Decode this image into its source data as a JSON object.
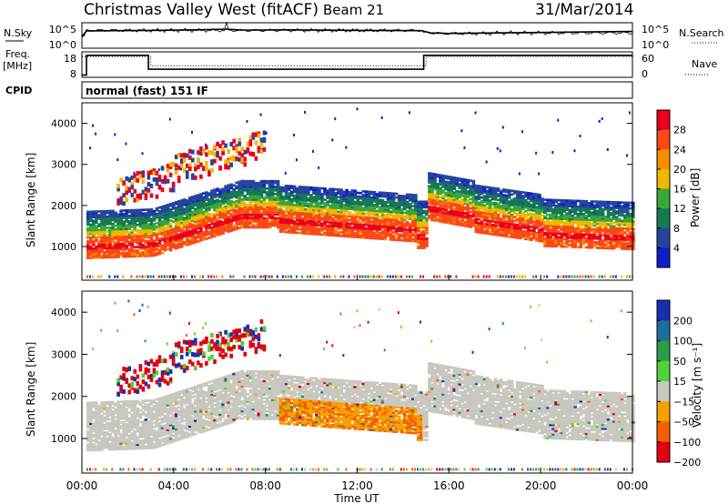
{
  "header": {
    "station": "Christmas Valley West (fitACF)",
    "beam": "Beam 21",
    "date": "31/Mar/2014"
  },
  "left_labels": {
    "nsky": "N.Sky",
    "freq_line1": "Freq.",
    "freq_line2": "[MHz]",
    "cpid": "CPID"
  },
  "right_labels": {
    "nsearch": "N.Search",
    "nave": "Nave"
  },
  "cpid_text": "normal (fast) 151 IF",
  "x_title": "Time UT",
  "chart_data": [
    {
      "id": "noise",
      "type": "line",
      "left_ticks": [
        "10^5",
        "10^0"
      ],
      "right_ticks": [
        "10^5",
        "10^0"
      ],
      "series": [
        {
          "name": "N.Sky",
          "x": [
            0,
            0.2,
            3,
            5,
            6.3,
            7,
            9,
            12,
            14.8,
            15.2,
            16,
            18,
            20,
            24
          ],
          "y": [
            0.45,
            0.68,
            0.7,
            0.72,
            0.75,
            0.71,
            0.72,
            0.7,
            0.69,
            0.6,
            0.58,
            0.6,
            0.62,
            0.66
          ]
        }
      ]
    },
    {
      "id": "freq",
      "type": "line",
      "left_ticks": [
        "18",
        "8"
      ],
      "right_ticks": [
        "60",
        "0"
      ],
      "series": [
        {
          "name": "Freq.",
          "x": [
            0,
            0.2,
            0.2,
            2.9,
            2.9,
            14.9,
            14.9,
            24
          ],
          "y": [
            8,
            8,
            16.5,
            16.5,
            10.5,
            10.5,
            16.5,
            16.5
          ]
        },
        {
          "name": "Nave",
          "x": [
            0,
            3,
            3,
            15,
            15,
            24
          ],
          "y": [
            16,
            16,
            12,
            12,
            16,
            16
          ]
        }
      ]
    },
    {
      "id": "power",
      "type": "heatmap",
      "ylabel": "Slant Range [km]",
      "xlim": [
        0,
        24
      ],
      "ylim": [
        180,
        4500
      ],
      "yticks": [
        "4000",
        "3000",
        "2000",
        "1000"
      ],
      "xticks": [
        "00:00",
        "04:00",
        "08:00",
        "12:00",
        "16:00",
        "20:00",
        "00:00"
      ],
      "colorbar": {
        "label": "Power [dB]",
        "ticks": [
          "28",
          "24",
          "20",
          "16",
          "12",
          "8",
          "4"
        ],
        "colors": [
          "#e8001e",
          "#fb4818",
          "#f88d00",
          "#f1b800",
          "#3aa73a",
          "#157a52",
          "#25459d",
          "#0d1ec8"
        ]
      }
    },
    {
      "id": "velocity",
      "type": "heatmap",
      "ylabel": "Slant Range [km]",
      "xlim": [
        0,
        24
      ],
      "ylim": [
        180,
        4500
      ],
      "yticks": [
        "4000",
        "3000",
        "2000",
        "1000"
      ],
      "xticks": [
        "00:00",
        "04:00",
        "08:00",
        "12:00",
        "16:00",
        "20:00",
        "00:00"
      ],
      "colorbar": {
        "label": "Velocity [m s⁻¹]",
        "ticks": [
          "200",
          "100",
          "50",
          "15",
          "−15",
          "−50",
          "−100",
          "−200"
        ],
        "colors": [
          "#1a2fb0",
          "#1a6f9e",
          "#2b9c48",
          "#52d23a",
          "#c8c8c0",
          "#f8a000",
          "#f45f00",
          "#e4000e"
        ]
      }
    }
  ]
}
